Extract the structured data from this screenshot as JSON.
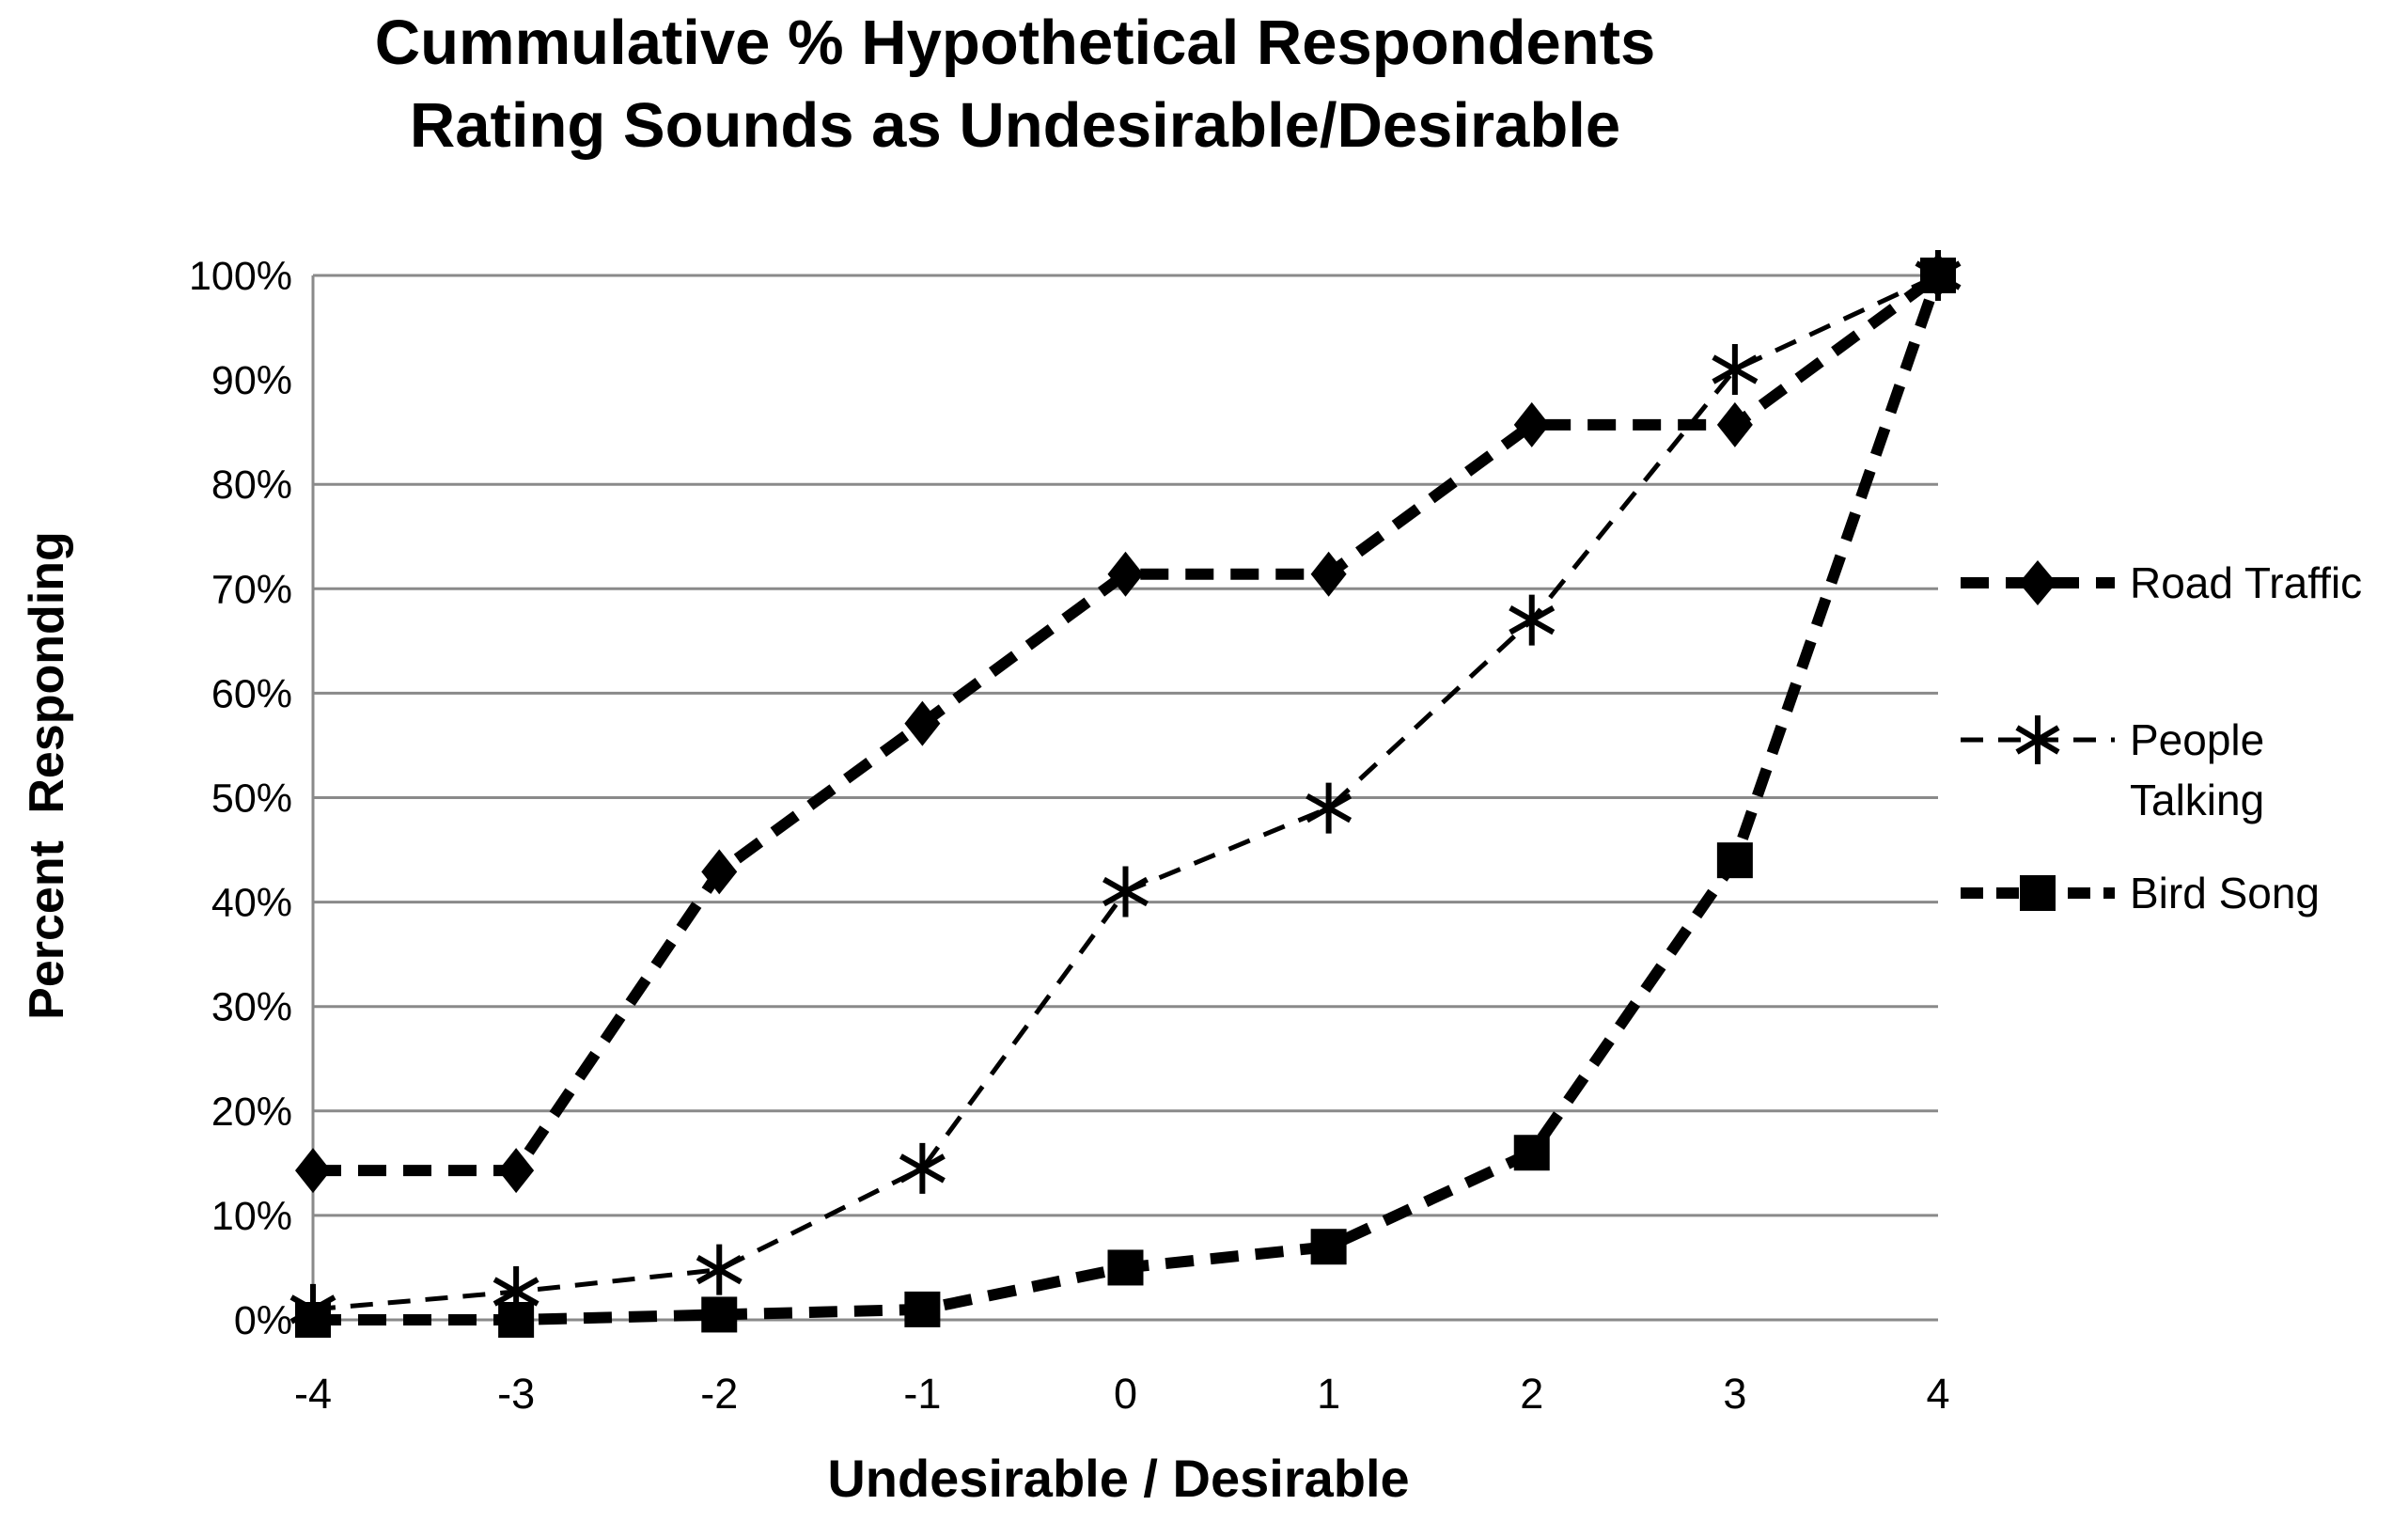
{
  "chart": {
    "title_line1": "Cummulative % Hypothetical Respondents",
    "title_line2": "Rating Sounds as Undesirable/Desirable",
    "y_axis_title": "Percent Responding",
    "x_axis_title": "Undesirable / Desirable"
  },
  "chart_data": {
    "type": "line",
    "title": "Cummulative % Hypothetical Respondents Rating Sounds as Undesirable/Desirable",
    "xlabel": "Undesirable / Desirable",
    "ylabel": "Percent Responding",
    "x": [
      -4,
      -3,
      -2,
      -1,
      0,
      1,
      2,
      3,
      4
    ],
    "x_tick_labels": [
      "-4",
      "-3",
      "-2",
      "-1",
      "0",
      "1",
      "2",
      "3",
      "4"
    ],
    "y_tick_values": [
      0,
      10,
      20,
      30,
      40,
      50,
      60,
      70,
      80,
      90,
      100
    ],
    "y_tick_labels": [
      "0%",
      "10%",
      "20%",
      "30%",
      "40%",
      "50%",
      "60%",
      "70%",
      "80%",
      "90%",
      "100%"
    ],
    "ylim": [
      0,
      100
    ],
    "xlim": [
      -4,
      4
    ],
    "gridlines_percent": [
      0,
      10,
      20,
      30,
      40,
      50,
      60,
      70,
      80,
      100
    ],
    "gridlines_omitted": [
      90
    ],
    "grid_on": true,
    "legend_position": "right",
    "series": [
      {
        "name": "Road Traffic",
        "legend_lines": [
          "Road Traffic"
        ],
        "marker": "diamond",
        "line": "thick-dashed",
        "values": [
          14.3,
          14.3,
          42.9,
          57.1,
          71.4,
          71.4,
          85.7,
          85.7,
          100
        ]
      },
      {
        "name": "People Talking",
        "legend_lines": [
          "People",
          "Talking"
        ],
        "marker": "asterisk",
        "line": "thin-dashed",
        "values": [
          1,
          2.7,
          4.8,
          14.5,
          41,
          49,
          67,
          91,
          100
        ]
      },
      {
        "name": "Bird Song",
        "legend_lines": [
          "Bird Song"
        ],
        "marker": "square",
        "line": "thick-dashed",
        "values": [
          0,
          0,
          0.5,
          1,
          5,
          7,
          16,
          44,
          100
        ]
      }
    ],
    "colors": {
      "series": "#000000",
      "grid": "#8a8a8a",
      "text": "#000000",
      "background": "#ffffff"
    }
  }
}
